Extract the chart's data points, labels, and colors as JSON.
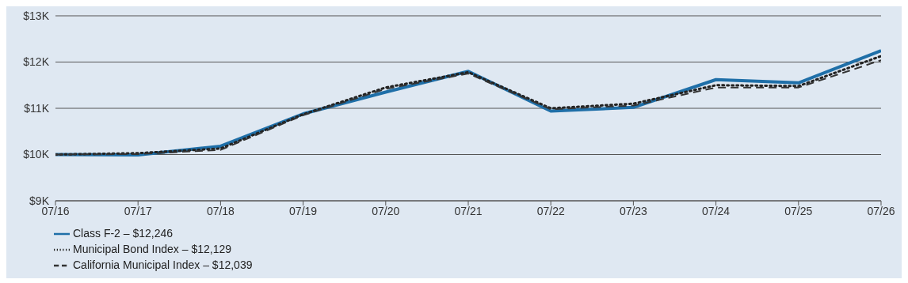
{
  "chart_data": {
    "type": "line",
    "categories": [
      "07/16",
      "07/17",
      "07/18",
      "07/19",
      "07/20",
      "07/21",
      "07/22",
      "07/23",
      "07/24",
      "07/25",
      "07/26"
    ],
    "series": [
      {
        "name": "Class F-2 – $12,246",
        "color": "#1f6fa8",
        "line_style": "solid",
        "values": [
          10000,
          9990,
          10180,
          10880,
          11350,
          11800,
          10940,
          11020,
          11620,
          11550,
          12246
        ]
      },
      {
        "name": "Municipal Bond Index – $12,129",
        "color": "#222222",
        "line_style": "dotted",
        "values": [
          10000,
          10030,
          10130,
          10870,
          11450,
          11780,
          11000,
          11100,
          11500,
          11480,
          12129
        ]
      },
      {
        "name": "California Municipal Index – $12,039",
        "color": "#333333",
        "line_style": "dashed",
        "values": [
          10000,
          10010,
          10100,
          10850,
          11420,
          11750,
          10980,
          11060,
          11450,
          11450,
          12039
        ]
      }
    ],
    "ylim": [
      9000,
      13000
    ],
    "yticks": [
      {
        "value": 9000,
        "label": "$9K"
      },
      {
        "value": 10000,
        "label": "$10K"
      },
      {
        "value": 11000,
        "label": "$11K"
      },
      {
        "value": 12000,
        "label": "$12K"
      },
      {
        "value": 13000,
        "label": "$13K"
      }
    ],
    "grid": "y",
    "legend": "bottom",
    "marker": "none"
  }
}
